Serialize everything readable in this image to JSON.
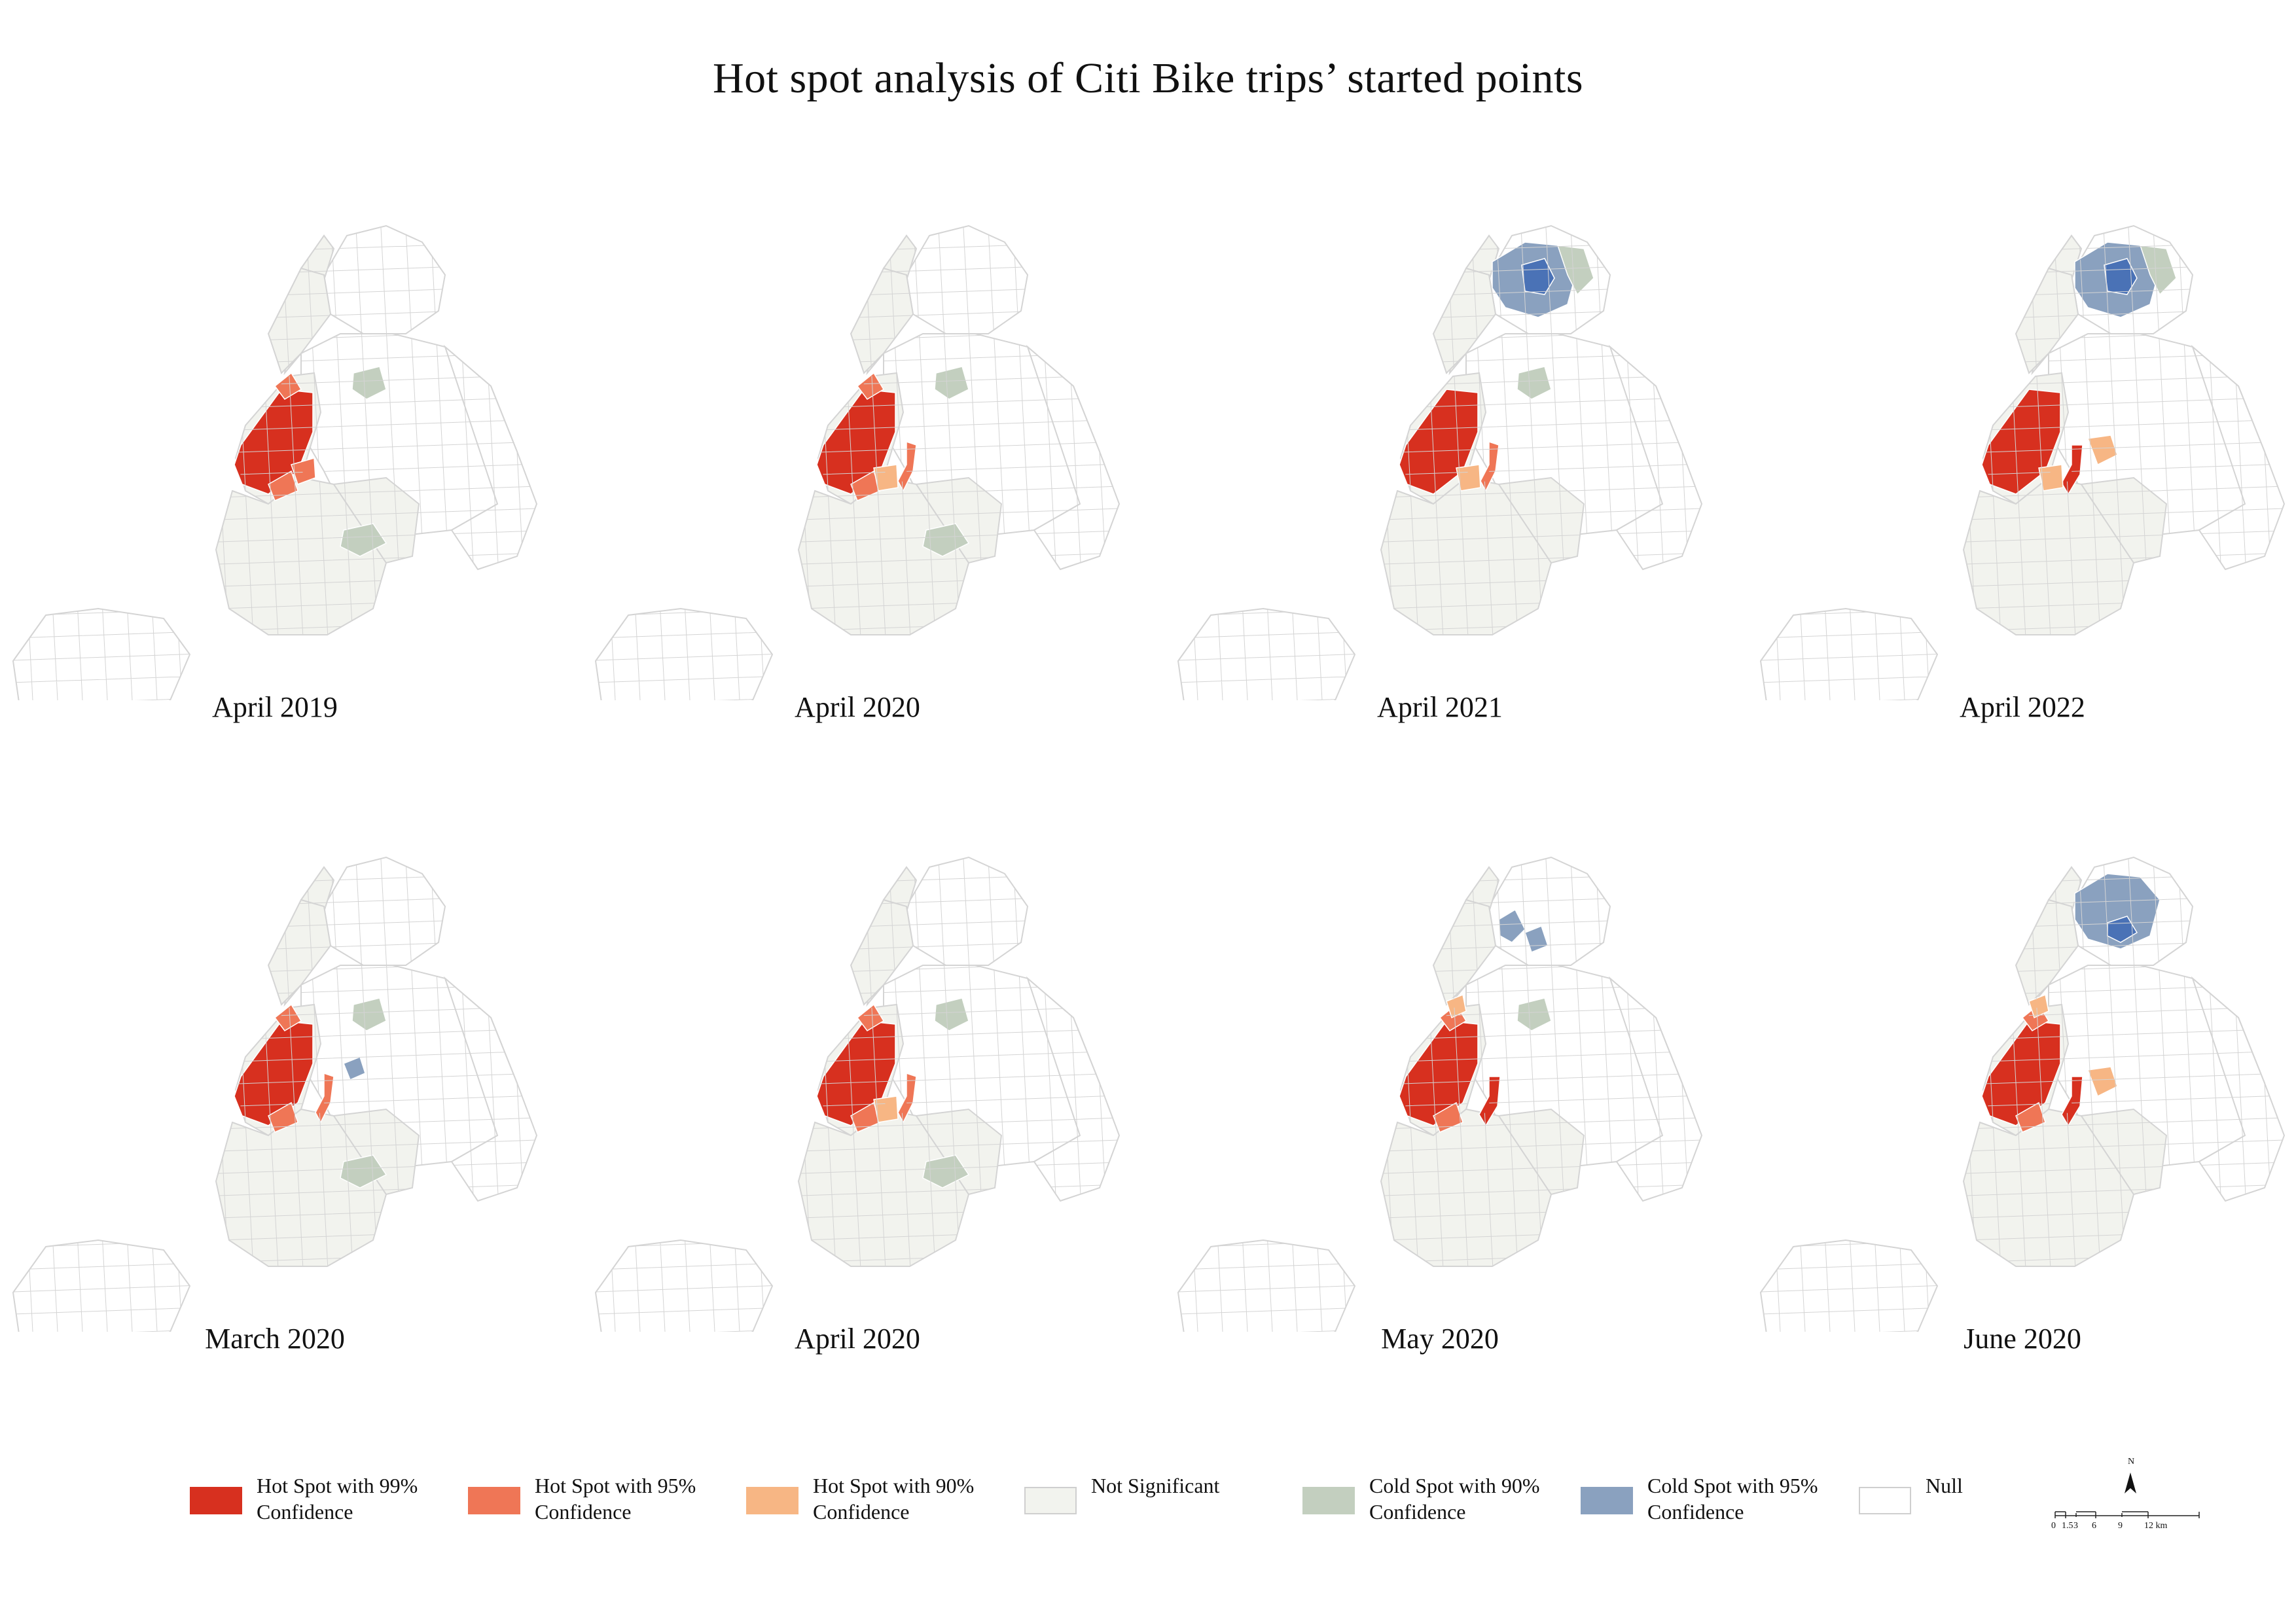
{
  "title": "Hot spot analysis of Citi Bike trips’ started points",
  "colors": {
    "hot99": "#d7301f",
    "hot95": "#ef7656",
    "hot90": "#f7b684",
    "not_significant": "#f2f3ee",
    "cold90": "#c3cfbf",
    "cold95": "#8aa1bf",
    "cold99": "#4a72b6",
    "null": "#ffffff",
    "boundary": "#d4d4d4"
  },
  "panels": [
    {
      "label": "April 2019",
      "highlights": [
        "manhattan_south_hot99",
        "manhattan_edge_hot95",
        "bk_waterfront_hot95",
        "cold90_queens_north",
        "cold90_brooklyn_mid"
      ]
    },
    {
      "label": "April 2020",
      "highlights": [
        "manhattan_south_hot99",
        "manhattan_edge_hot95",
        "lic_hot95",
        "bk_waterfront_hot90",
        "cold90_queens_north",
        "cold90_brooklyn_mid"
      ]
    },
    {
      "label": "April 2021",
      "highlights": [
        "manhattan_south_hot99",
        "lic_hot95",
        "bk_waterfront_hot90",
        "bronx_cold95",
        "bronx_cold99",
        "bronx_cold90",
        "cold90_queens_north"
      ]
    },
    {
      "label": "April 2022",
      "highlights": [
        "manhattan_south_hot99",
        "lic_hot99",
        "queens_hot90",
        "bk_waterfront_hot90",
        "bronx_cold95",
        "bronx_cold99",
        "bronx_cold90"
      ]
    },
    {
      "label": "March 2020",
      "highlights": [
        "manhattan_south_hot99",
        "manhattan_edge_hot95",
        "lic_hot95",
        "queens_cold95",
        "cold90_queens_north",
        "cold90_brooklyn_mid"
      ]
    },
    {
      "label": "April 2020",
      "highlights": [
        "manhattan_south_hot99",
        "manhattan_edge_hot95",
        "lic_hot95",
        "bk_waterfront_hot90",
        "cold90_queens_north",
        "cold90_brooklyn_mid"
      ]
    },
    {
      "label": "May 2020",
      "highlights": [
        "manhattan_south_hot99",
        "manhattan_edge_hot95",
        "lic_hot99",
        "upper_hot90",
        "bronx_cold95_small",
        "cold90_queens_north"
      ]
    },
    {
      "label": "June 2020",
      "highlights": [
        "manhattan_south_hot99",
        "manhattan_edge_hot95",
        "lic_hot99",
        "queens_hot90",
        "upper_hot90",
        "bronx_cold95",
        "bronx_cold99_small"
      ]
    }
  ],
  "legend": [
    {
      "label": "Hot Spot with 99%\nConfidence",
      "color_key": "hot99"
    },
    {
      "label": "Hot Spot with 95%\nConfidence",
      "color_key": "hot95"
    },
    {
      "label": "Hot Spot with 90%\nConfidence",
      "color_key": "hot90"
    },
    {
      "label": "Not Significant",
      "color_key": "not_significant"
    },
    {
      "label": "Cold Spot with 90%\nConfidence",
      "color_key": "cold90"
    },
    {
      "label": "Cold Spot with 95%\nConfidence",
      "color_key": "cold95"
    },
    {
      "label": "Null",
      "color_key": "null"
    }
  ],
  "scale_bar": {
    "north_label": "N",
    "ticks": [
      "0",
      "1.5",
      "3",
      "6",
      "9",
      "12 km"
    ]
  }
}
